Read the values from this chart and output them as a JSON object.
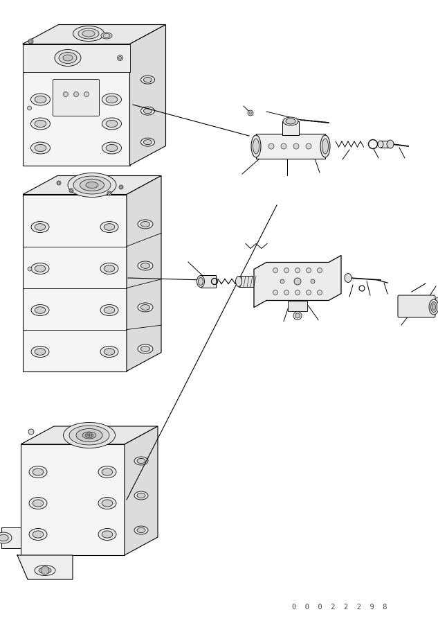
{
  "bg_color": "#ffffff",
  "line_color": "#000000",
  "figure_width": 6.33,
  "figure_height": 8.96,
  "dpi": 100,
  "part_number": "0  0  0  2  2  2  9  8"
}
